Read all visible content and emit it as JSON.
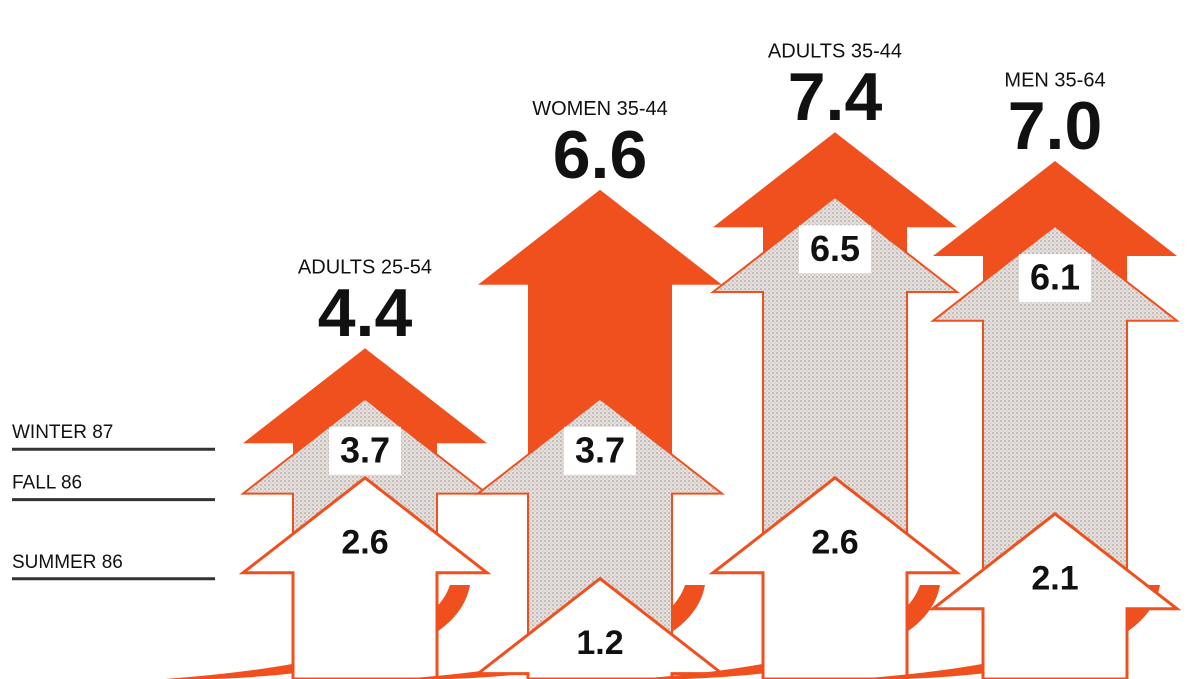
{
  "chart_data": {
    "type": "arrow",
    "categories": [
      "ADULTS 25-54",
      "WOMEN 35-44",
      "ADULTS 35-44",
      "MEN 35-64"
    ],
    "series": [
      {
        "name": "SUMMER 86",
        "color": "#ffffff",
        "values": [
          2.6,
          1.2,
          2.6,
          2.1
        ],
        "value_labels": [
          "2.6",
          "1.2",
          "2.6",
          "2.1"
        ]
      },
      {
        "name": "FALL 86",
        "color": "#d8d2cf",
        "values": [
          3.7,
          3.7,
          6.5,
          6.1
        ],
        "value_labels": [
          "3.7",
          "3.7",
          "6.5",
          "6.1"
        ]
      },
      {
        "name": "WINTER 87",
        "color": "#f0501e",
        "values": [
          4.4,
          6.6,
          7.4,
          7.0
        ],
        "value_labels": [
          "4.4",
          "6.6",
          "7.4",
          "7.0"
        ]
      }
    ]
  }
}
